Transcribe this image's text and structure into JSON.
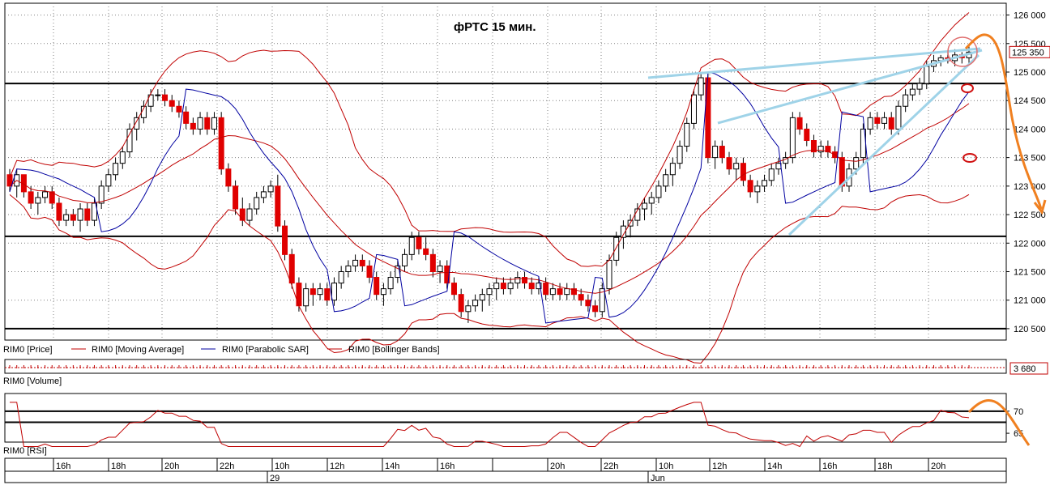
{
  "chart_data": {
    "type": "candlestick",
    "title": "фРТС   15 мин.",
    "instrument": "RIM0",
    "colors": {
      "up": "#ffffff",
      "down": "#e00000",
      "wick": "#000000",
      "ma": "#c00000",
      "bb": "#c00000",
      "sar": "#0000a0",
      "rsi": "#c00000",
      "annot_blue": "#9fd3e8",
      "annot_orange": "#f08020",
      "annot_circle": "#d01010"
    },
    "price_axis": {
      "ylim": [
        120300,
        126150
      ],
      "ticks": [
        126000,
        125500,
        125000,
        124500,
        124000,
        123500,
        123000,
        122500,
        122000,
        121500,
        121000,
        120500
      ]
    },
    "last_price": "125 350",
    "horizontal_levels": [
      124800,
      122120,
      120500
    ],
    "candles": [
      [
        123200,
        123300,
        122900,
        123000
      ],
      [
        123000,
        123300,
        122800,
        123200
      ],
      [
        123200,
        123200,
        122800,
        122900
      ],
      [
        122900,
        123000,
        122600,
        122700
      ],
      [
        122700,
        122900,
        122500,
        122800
      ],
      [
        122800,
        123000,
        122700,
        122900
      ],
      [
        122900,
        123000,
        122600,
        122700
      ],
      [
        122700,
        122800,
        122300,
        122400
      ],
      [
        122400,
        122600,
        122300,
        122500
      ],
      [
        122500,
        122600,
        122300,
        122400
      ],
      [
        122400,
        122700,
        122200,
        122600
      ],
      [
        122600,
        122700,
        122300,
        122400
      ],
      [
        122400,
        122800,
        122300,
        122700
      ],
      [
        122700,
        123100,
        122600,
        123000
      ],
      [
        123000,
        123300,
        122900,
        123200
      ],
      [
        123200,
        123500,
        123100,
        123400
      ],
      [
        123400,
        123700,
        123300,
        123600
      ],
      [
        123600,
        124100,
        123500,
        124000
      ],
      [
        124000,
        124300,
        123800,
        124200
      ],
      [
        124200,
        124500,
        124100,
        124400
      ],
      [
        124400,
        124700,
        124300,
        124600
      ],
      [
        124600,
        124700,
        124500,
        124600
      ],
      [
        124600,
        124700,
        124400,
        124500
      ],
      [
        124500,
        124600,
        124300,
        124400
      ],
      [
        124400,
        124500,
        124200,
        124300
      ],
      [
        124300,
        124400,
        124000,
        124100
      ],
      [
        124100,
        124200,
        123900,
        124000
      ],
      [
        124000,
        124300,
        123900,
        124200
      ],
      [
        124200,
        124300,
        123900,
        124000
      ],
      [
        124000,
        124300,
        123900,
        124200
      ],
      [
        124200,
        124300,
        123200,
        123300
      ],
      [
        123300,
        123400,
        122900,
        123000
      ],
      [
        123000,
        123100,
        122500,
        122600
      ],
      [
        122600,
        122800,
        122300,
        122400
      ],
      [
        122400,
        122700,
        122300,
        122600
      ],
      [
        122600,
        122900,
        122500,
        122800
      ],
      [
        122800,
        123000,
        122700,
        122900
      ],
      [
        122900,
        123100,
        122800,
        123000
      ],
      [
        123000,
        123200,
        122200,
        122300
      ],
      [
        122300,
        122400,
        121700,
        121800
      ],
      [
        121800,
        121900,
        121200,
        121300
      ],
      [
        121300,
        121400,
        120800,
        120900
      ],
      [
        120900,
        121300,
        120800,
        121200
      ],
      [
        121200,
        121300,
        120900,
        121100
      ],
      [
        121100,
        121300,
        121000,
        121200
      ],
      [
        121200,
        121300,
        120900,
        121000
      ],
      [
        121000,
        121400,
        120900,
        121300
      ],
      [
        121300,
        121600,
        121200,
        121500
      ],
      [
        121500,
        121700,
        121400,
        121600
      ],
      [
        121600,
        121800,
        121500,
        121700
      ],
      [
        121700,
        121800,
        121500,
        121600
      ],
      [
        121600,
        121700,
        121300,
        121400
      ],
      [
        121400,
        121500,
        121000,
        121100
      ],
      [
        121100,
        121300,
        120900,
        121200
      ],
      [
        121200,
        121500,
        121100,
        121400
      ],
      [
        121400,
        121700,
        121300,
        121600
      ],
      [
        121600,
        121900,
        121500,
        121800
      ],
      [
        121800,
        122200,
        121700,
        122100
      ],
      [
        122100,
        122200,
        121800,
        121900
      ],
      [
        121900,
        122100,
        121700,
        121800
      ],
      [
        121800,
        121900,
        121400,
        121500
      ],
      [
        121500,
        121700,
        121300,
        121600
      ],
      [
        121600,
        121700,
        121200,
        121300
      ],
      [
        121300,
        121400,
        121000,
        121100
      ],
      [
        121100,
        121200,
        120700,
        120800
      ],
      [
        120800,
        121000,
        120600,
        120900
      ],
      [
        120900,
        121100,
        120800,
        121000
      ],
      [
        121000,
        121200,
        120800,
        121100
      ],
      [
        121100,
        121300,
        120900,
        121200
      ],
      [
        121200,
        121400,
        121000,
        121300
      ],
      [
        121300,
        121400,
        121100,
        121200
      ],
      [
        121200,
        121400,
        121100,
        121300
      ],
      [
        121300,
        121500,
        121200,
        121400
      ],
      [
        121400,
        121500,
        121200,
        121300
      ],
      [
        121300,
        121400,
        121100,
        121200
      ],
      [
        121200,
        121400,
        121100,
        121300
      ],
      [
        121300,
        121400,
        121000,
        121100
      ],
      [
        121100,
        121300,
        121000,
        121200
      ],
      [
        121200,
        121300,
        121000,
        121100
      ],
      [
        121100,
        121300,
        121000,
        121200
      ],
      [
        121200,
        121300,
        121000,
        121100
      ],
      [
        121100,
        121200,
        120900,
        121000
      ],
      [
        121000,
        121100,
        120800,
        120900
      ],
      [
        120900,
        121000,
        120700,
        120800
      ],
      [
        120800,
        121300,
        120700,
        121200
      ],
      [
        121200,
        121800,
        121100,
        121700
      ],
      [
        121700,
        122200,
        121600,
        122100
      ],
      [
        122100,
        122400,
        121900,
        122300
      ],
      [
        122300,
        122500,
        122100,
        122400
      ],
      [
        122400,
        122700,
        122300,
        122600
      ],
      [
        122600,
        122800,
        122400,
        122700
      ],
      [
        122700,
        122900,
        122500,
        122800
      ],
      [
        122800,
        123100,
        122700,
        123000
      ],
      [
        123000,
        123300,
        122900,
        123200
      ],
      [
        123200,
        123500,
        123000,
        123400
      ],
      [
        123400,
        123800,
        123300,
        123700
      ],
      [
        123700,
        124200,
        123600,
        124100
      ],
      [
        124100,
        124700,
        124000,
        124600
      ],
      [
        124600,
        125000,
        124500,
        124900
      ],
      [
        124900,
        125000,
        123400,
        123500
      ],
      [
        123500,
        123800,
        123300,
        123700
      ],
      [
        123700,
        123800,
        123400,
        123500
      ],
      [
        123500,
        123600,
        123200,
        123300
      ],
      [
        123300,
        123500,
        123100,
        123400
      ],
      [
        123400,
        123500,
        123000,
        123100
      ],
      [
        123100,
        123200,
        122800,
        122900
      ],
      [
        122900,
        123100,
        122700,
        123000
      ],
      [
        123000,
        123200,
        122900,
        123100
      ],
      [
        123100,
        123400,
        123000,
        123300
      ],
      [
        123300,
        123500,
        123200,
        123400
      ],
      [
        123400,
        123600,
        123300,
        123500
      ],
      [
        123500,
        124300,
        123400,
        124200
      ],
      [
        124200,
        124300,
        123900,
        124000
      ],
      [
        124000,
        124100,
        123700,
        123800
      ],
      [
        123800,
        123900,
        123500,
        123600
      ],
      [
        123600,
        123800,
        123500,
        123700
      ],
      [
        123700,
        123800,
        123500,
        123600
      ],
      [
        123600,
        123700,
        123400,
        123500
      ],
      [
        123500,
        123600,
        122900,
        123000
      ],
      [
        123000,
        123400,
        122900,
        123300
      ],
      [
        123300,
        123600,
        123200,
        123500
      ],
      [
        123500,
        124100,
        123400,
        124000
      ],
      [
        124000,
        124300,
        123900,
        124200
      ],
      [
        124200,
        124300,
        124000,
        124100
      ],
      [
        124100,
        124300,
        124000,
        124200
      ],
      [
        124200,
        124300,
        123900,
        124000
      ],
      [
        124000,
        124500,
        123900,
        124400
      ],
      [
        124400,
        124700,
        124300,
        124600
      ],
      [
        124600,
        124800,
        124500,
        124700
      ],
      [
        124700,
        124900,
        124600,
        124800
      ],
      [
        124800,
        125200,
        124700,
        125100
      ],
      [
        125100,
        125300,
        125000,
        125200
      ],
      [
        125200,
        125300,
        125100,
        125250
      ],
      [
        125250,
        125350,
        125150,
        125200
      ],
      [
        125200,
        125400,
        125100,
        125300
      ],
      [
        125300,
        125350,
        125150,
        125250
      ],
      [
        125250,
        125450,
        125150,
        125350
      ]
    ],
    "time_axis": {
      "labels": [
        "16h",
        "18h",
        "20h",
        "22h",
        "10h",
        "12h",
        "14h",
        "16h",
        "20h",
        "22h",
        "10h",
        "12h",
        "14h",
        "16h",
        "18h",
        "20h"
      ],
      "dates": [
        "29",
        "Jun"
      ]
    },
    "volume_value": "3 680",
    "rsi_axis": {
      "ticks": [
        70,
        65
      ],
      "levels": [
        70,
        67.5
      ]
    },
    "legend": [
      "RIM0 [Price]",
      "RIM0 [Moving Average]",
      "RIM0 [Parabolic SAR]",
      "RIM0 [Bollinger Bands]"
    ],
    "volume_label": "RIM0 [Volume]",
    "rsi_label": "RIM0 [RSI]"
  }
}
